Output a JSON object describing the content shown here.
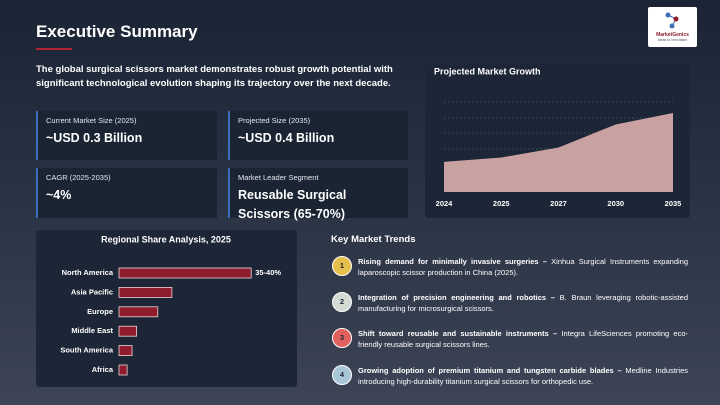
{
  "header": {
    "title": "Executive Summary",
    "logo_text": "MarketGenics",
    "logo_tagline": "Ideas to Innovation"
  },
  "intro": "The global surgical scissors market demonstrates robust growth potential with significant technological evolution shaping its trajectory over the next decade.",
  "metrics": [
    {
      "label": "Current Market Size (2025)",
      "value": "~USD 0.3 Billion"
    },
    {
      "label": "Projected Size (2035)",
      "value": "~USD 0.4 Billion"
    },
    {
      "label": "CAGR (2025-2035)",
      "value": "~4%"
    },
    {
      "label": "Market Leader Segment",
      "value": "Reusable Surgical Scissors (65-70%)"
    }
  ],
  "chart_data": [
    {
      "type": "area",
      "title": "Projected Market Growth",
      "categories": [
        "2024",
        "2025",
        "2027",
        "2030",
        "2035"
      ],
      "values": [
        2.1,
        2.4,
        3.1,
        4.7,
        5.5
      ],
      "ylim": [
        0,
        8
      ],
      "color": "#c9a1a1",
      "grid": true
    },
    {
      "type": "bar",
      "orientation": "horizontal",
      "title": "Regional Share Analysis, 2025",
      "categories": [
        "North America",
        "Asia Pacific",
        "Europe",
        "Middle East",
        "South America",
        "Africa"
      ],
      "values": [
        37.5,
        15,
        11,
        5,
        3.7,
        2.3
      ],
      "value_labels": [
        "35-40%",
        null,
        null,
        null,
        null,
        null
      ],
      "xlim": [
        0,
        40
      ],
      "color": "#8e1c2c"
    }
  ],
  "trends": {
    "title": "Key Market Trends",
    "items": [
      {
        "number": "1",
        "color": "#e6c04c",
        "headline": "Rising demand for minimally invasive surgeries –",
        "detail": "Xinhua Surgical Instruments expanding laparoscopic scissor production in China (2025)."
      },
      {
        "number": "2",
        "color": "#d3dbd2",
        "headline": "Integration of precision engineering and robotics –",
        "detail": "B. Braun leveraging robotic-assisted manufacturing for microsurgical scissors."
      },
      {
        "number": "3",
        "color": "#e0615f",
        "headline": "Shift toward reusable and sustainable instruments –",
        "detail": "Integra LifeSciences promoting eco-friendly reusable surgical scissors lines."
      },
      {
        "number": "4",
        "color": "#a9c6d6",
        "headline": "Growing adoption of premium titanium and tungsten carbide blades –",
        "detail": "Medline Industries introducing high-durability titanium surgical scissors for orthopedic use."
      }
    ]
  }
}
